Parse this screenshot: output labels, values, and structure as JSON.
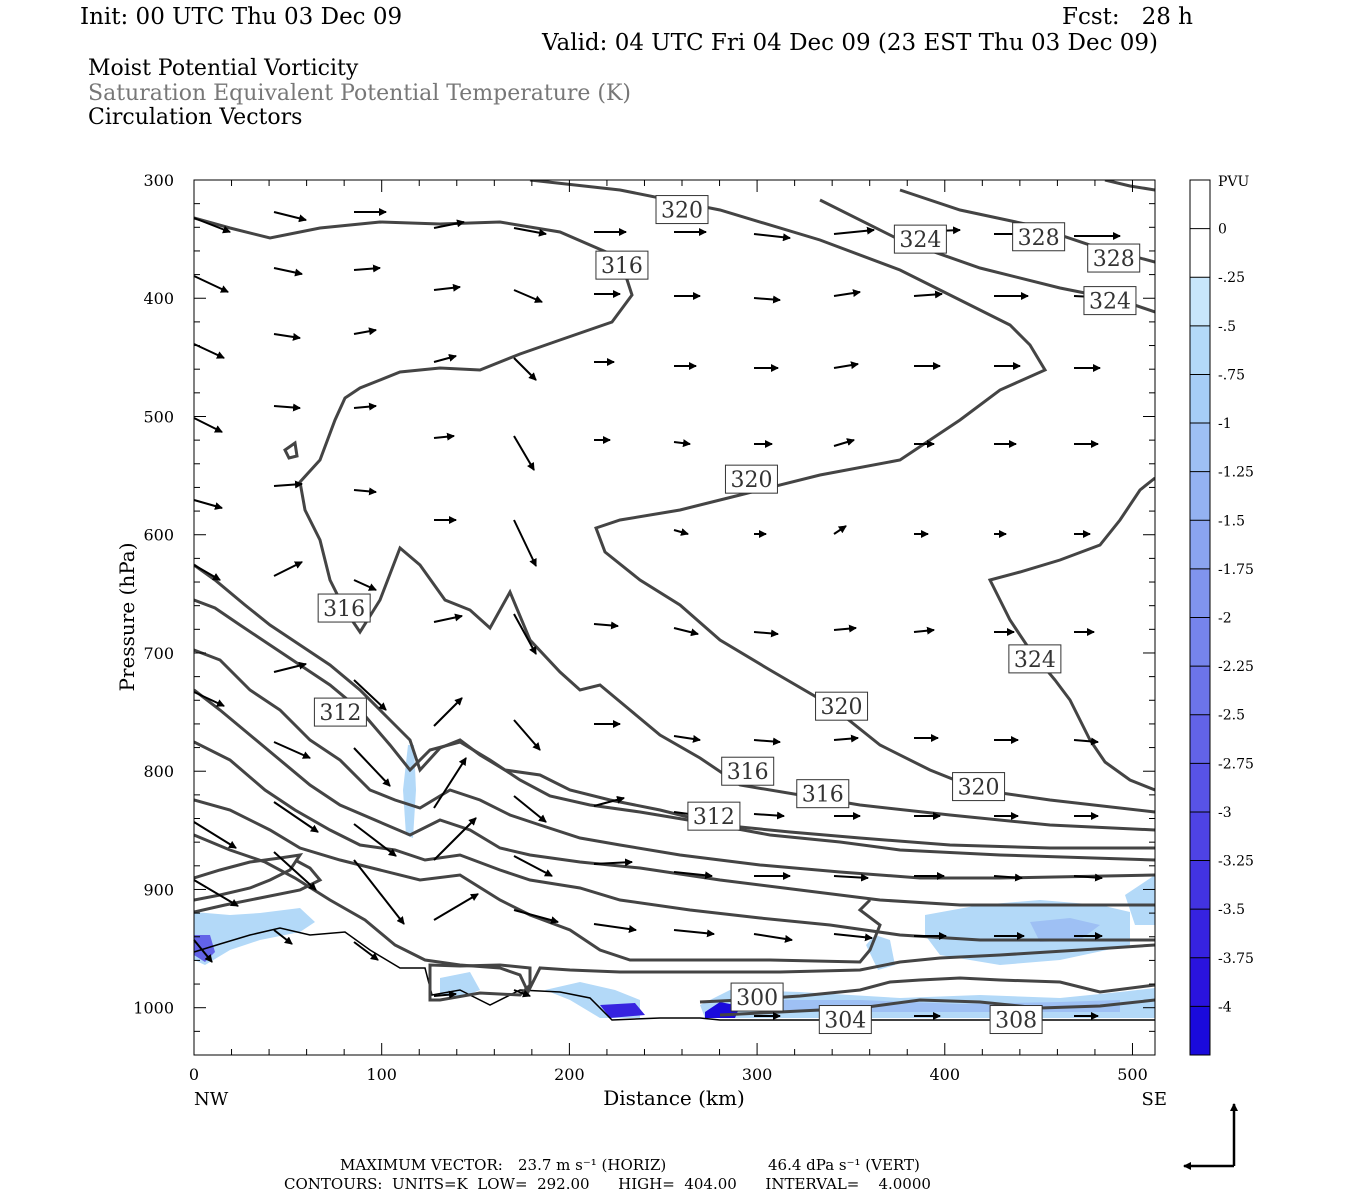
{
  "header": {
    "init": "Init: 00 UTC Thu 03 Dec 09",
    "fcst": "Fcst:   28 h",
    "valid": "Valid: 04 UTC Fri 04 Dec 09 (23 EST Thu 03 Dec 09)",
    "field1": "Moist Potential Vorticity",
    "field2": "Saturation Equivalent Potential Temperature (K)",
    "field3": "Circulation Vectors"
  },
  "footer": {
    "maxvec_label": "MAXIMUM VECTOR:",
    "horiz": "23.7 m s⁻¹ (HORIZ)",
    "vert": "46.4 dPa s⁻¹ (VERT)",
    "contours": "CONTOURS:  UNITS=K  LOW=  292.00      HIGH=  404.00      INTERVAL=    4.0000"
  },
  "chart_data": {
    "type": "cross-section",
    "title": "Moist Potential Vorticity / Saturation Equivalent Potential Temperature (K) / Circulation Vectors",
    "xlabel": "Distance (km)",
    "ylabel": "Pressure (hPa)",
    "xlim": [
      0,
      512
    ],
    "ylim": [
      1040,
      300
    ],
    "x_ticks": [
      0,
      100,
      200,
      300,
      400,
      500
    ],
    "y_ticks": [
      300,
      400,
      500,
      600,
      700,
      800,
      900,
      1000
    ],
    "x_end_labels": [
      "NW",
      "SE"
    ],
    "colorbar": {
      "units": "PVU",
      "levels": [
        "0",
        "-.25",
        "-.5",
        "-.75",
        "-1",
        "-1.25",
        "-1.5",
        "-1.75",
        "-2",
        "-2.25",
        "-2.5",
        "-2.75",
        "-3",
        "-3.25",
        "-3.5",
        "-3.75",
        "-4"
      ],
      "colors": [
        "#ffffff",
        "#c8e6fb",
        "#b3d9f8",
        "#a6cdf6",
        "#9ec0f4",
        "#94b2f2",
        "#8aa4f0",
        "#8094ee",
        "#7684ec",
        "#6c74ea",
        "#6263e8",
        "#5853e6",
        "#4e43e4",
        "#4233e2",
        "#3623e0",
        "#2a13de",
        "#1a0adc"
      ]
    },
    "contour_labels": [
      {
        "text": "320",
        "x": 260,
        "p": 325
      },
      {
        "text": "316",
        "x": 228,
        "p": 372
      },
      {
        "text": "324",
        "x": 387,
        "p": 350
      },
      {
        "text": "328",
        "x": 450,
        "p": 348
      },
      {
        "text": "328",
        "x": 490,
        "p": 366
      },
      {
        "text": "324",
        "x": 488,
        "p": 402
      },
      {
        "text": "320",
        "x": 297,
        "p": 553
      },
      {
        "text": "316",
        "x": 80,
        "p": 662
      },
      {
        "text": "312",
        "x": 78,
        "p": 750
      },
      {
        "text": "324",
        "x": 448,
        "p": 705
      },
      {
        "text": "320",
        "x": 345,
        "p": 745
      },
      {
        "text": "316",
        "x": 295,
        "p": 800
      },
      {
        "text": "316",
        "x": 335,
        "p": 819
      },
      {
        "text": "320",
        "x": 418,
        "p": 813
      },
      {
        "text": "312",
        "x": 277,
        "p": 838
      },
      {
        "text": "300",
        "x": 300,
        "p": 991
      },
      {
        "text": "304",
        "x": 347,
        "p": 1010
      },
      {
        "text": "308",
        "x": 438,
        "p": 1010
      }
    ]
  }
}
